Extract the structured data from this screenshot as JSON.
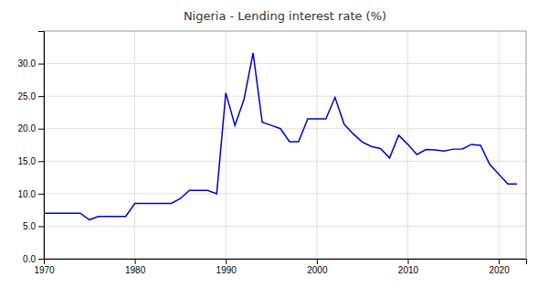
{
  "chart_data": {
    "type": "line",
    "title": "Nigeria - Lending interest rate (%)",
    "x": [
      1970,
      1971,
      1972,
      1973,
      1974,
      1975,
      1976,
      1977,
      1978,
      1979,
      1980,
      1981,
      1982,
      1983,
      1984,
      1985,
      1986,
      1987,
      1988,
      1989,
      1990,
      1991,
      1992,
      1993,
      1994,
      1995,
      1996,
      1997,
      1998,
      1999,
      2000,
      2001,
      2002,
      2003,
      2004,
      2005,
      2006,
      2007,
      2008,
      2009,
      2010,
      2011,
      2012,
      2013,
      2014,
      2015,
      2016,
      2017,
      2018,
      2019,
      2020,
      2021,
      2022
    ],
    "values": [
      7.0,
      7.0,
      7.0,
      7.0,
      7.0,
      6.0,
      6.5,
      6.5,
      6.5,
      6.5,
      8.5,
      8.5,
      8.5,
      8.5,
      8.5,
      9.25,
      10.5,
      10.5,
      10.5,
      10.0,
      25.5,
      20.5,
      24.5,
      31.65,
      21.0,
      20.5,
      20.0,
      18.0,
      18.0,
      21.5,
      21.5,
      21.5,
      24.8,
      20.7,
      19.2,
      17.95,
      17.26,
      16.94,
      15.48,
      18.99,
      17.59,
      16.02,
      16.79,
      16.72,
      16.55,
      16.85,
      16.87,
      17.58,
      17.43,
      14.5,
      13.0,
      11.5,
      11.5
    ],
    "color": "#0000CC",
    "xlim": [
      1970,
      2023
    ],
    "ylim": [
      0.0,
      35.0
    ],
    "xticks": [
      1970,
      1980,
      1990,
      2000,
      2010,
      2020
    ],
    "yticks": [
      {
        "value": 0,
        "label": "0.0"
      },
      {
        "value": 5,
        "label": "5.0"
      },
      {
        "value": 10,
        "label": "10.0"
      },
      {
        "value": 15,
        "label": "15.0"
      },
      {
        "value": 20,
        "label": "20.0"
      },
      {
        "value": 25,
        "label": "25.0"
      },
      {
        "value": 30,
        "label": "30.0"
      }
    ],
    "grid": true
  }
}
